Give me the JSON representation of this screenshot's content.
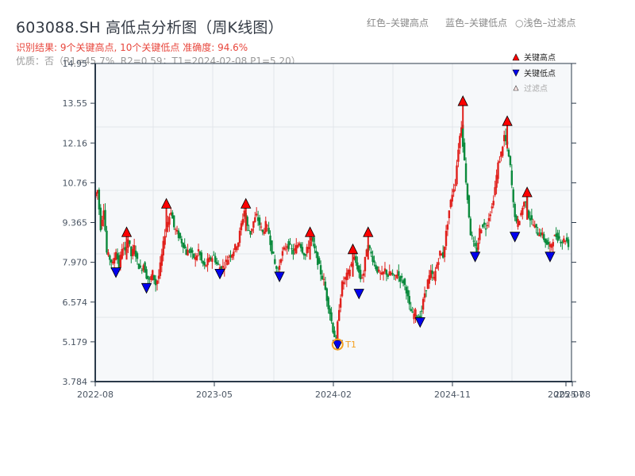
{
  "header": {
    "title": "603088.SH 高低点分析图（周K线图）",
    "result_line": "识别结果: 9个关键高点, 10个关键低点  准确度: 94.6%",
    "quality_line": "优质：否（R1=45.7%, R2=0.59；T1=2024-02-08 P1=5.20）"
  },
  "top_legend": {
    "red": "红色–关键高点",
    "blue": "蓝色–关键低点",
    "light": "○浅色–过滤点"
  },
  "colors": {
    "up": "#e0201c",
    "down": "#0a8a3c",
    "high_marker": "#ff0000",
    "low_marker": "#0000ee",
    "t1_ring": "#f5a020",
    "axis": "#2b3a4a",
    "grid": "#e2e6ea",
    "plot_bg": "#f6f8fa"
  },
  "chart_data": {
    "type": "candlestick",
    "title": "603088.SH 高低点分析图（周K线图）",
    "xlabel": "",
    "ylabel": "",
    "ylim": [
      3.784,
      14.95
    ],
    "y_ticks": [
      "14.95",
      "13.55",
      "12.16",
      "10.76",
      "9.365",
      "7.970",
      "6.574",
      "5.179",
      "3.784"
    ],
    "x_ticks": [
      "2022-08",
      "2023-05",
      "2024-02",
      "2024-11",
      "2025-07",
      "2025-08"
    ],
    "legend": [
      {
        "label": "关键高点",
        "marker": "triangle-up",
        "color": "#ff0000"
      },
      {
        "label": "关键低点",
        "marker": "triangle-down",
        "color": "#0000ee"
      },
      {
        "label": "过滤点",
        "marker": "triangle-up-outline",
        "color": "#ffcccc"
      }
    ],
    "grid": true,
    "annotation": {
      "label": "T1",
      "date": "2024-02-08",
      "price": 5.2
    },
    "path_points": [
      [
        0,
        10.3
      ],
      [
        2,
        10.5
      ],
      [
        4,
        9.2
      ],
      [
        6,
        9.9
      ],
      [
        8,
        8.3
      ],
      [
        10,
        8.1
      ],
      [
        12,
        7.9
      ],
      [
        14,
        8.4
      ],
      [
        16,
        7.8
      ],
      [
        18,
        8.5
      ],
      [
        20,
        8.3
      ],
      [
        22,
        8.8
      ],
      [
        24,
        8.2
      ],
      [
        26,
        8.5
      ],
      [
        28,
        8.0
      ],
      [
        30,
        7.7
      ],
      [
        32,
        7.9
      ],
      [
        34,
        7.5
      ],
      [
        36,
        7.3
      ],
      [
        38,
        7.6
      ],
      [
        40,
        7.2
      ],
      [
        42,
        7.5
      ],
      [
        44,
        8.2
      ],
      [
        46,
        9.0
      ],
      [
        48,
        9.4
      ],
      [
        50,
        9.8
      ],
      [
        52,
        9.2
      ],
      [
        54,
        9.0
      ],
      [
        56,
        8.8
      ],
      [
        58,
        8.6
      ],
      [
        60,
        8.3
      ],
      [
        62,
        8.4
      ],
      [
        64,
        8.2
      ],
      [
        66,
        8.1
      ],
      [
        68,
        8.4
      ],
      [
        70,
        8.0
      ],
      [
        72,
        7.8
      ],
      [
        74,
        8.0
      ],
      [
        76,
        8.1
      ],
      [
        78,
        8.2
      ],
      [
        80,
        7.9
      ],
      [
        82,
        7.8
      ],
      [
        84,
        7.8
      ],
      [
        86,
        8.0
      ],
      [
        88,
        8.2
      ],
      [
        90,
        8.3
      ],
      [
        92,
        8.5
      ],
      [
        94,
        8.7
      ],
      [
        96,
        9.3
      ],
      [
        98,
        9.8
      ],
      [
        100,
        9.2
      ],
      [
        102,
        9.0
      ],
      [
        104,
        9.4
      ],
      [
        106,
        9.6
      ],
      [
        108,
        9.3
      ],
      [
        110,
        9.0
      ],
      [
        112,
        9.3
      ],
      [
        114,
        9.0
      ],
      [
        116,
        8.4
      ],
      [
        118,
        7.9
      ],
      [
        120,
        7.6
      ],
      [
        122,
        8.2
      ],
      [
        124,
        8.4
      ],
      [
        126,
        8.6
      ],
      [
        128,
        8.5
      ],
      [
        130,
        8.3
      ],
      [
        132,
        8.5
      ],
      [
        134,
        8.7
      ],
      [
        136,
        8.4
      ],
      [
        138,
        8.2
      ],
      [
        140,
        8.6
      ],
      [
        142,
        8.8
      ],
      [
        144,
        8.4
      ],
      [
        146,
        8.0
      ],
      [
        148,
        7.6
      ],
      [
        150,
        7.3
      ],
      [
        152,
        6.7
      ],
      [
        154,
        6.2
      ],
      [
        156,
        5.6
      ],
      [
        158,
        5.2
      ],
      [
        160,
        6.4
      ],
      [
        162,
        7.2
      ],
      [
        164,
        7.4
      ],
      [
        166,
        7.6
      ],
      [
        168,
        7.9
      ],
      [
        170,
        8.1
      ],
      [
        172,
        7.8
      ],
      [
        174,
        7.4
      ],
      [
        176,
        7.6
      ],
      [
        178,
        8.5
      ],
      [
        180,
        8.4
      ],
      [
        182,
        8.1
      ],
      [
        184,
        7.8
      ],
      [
        186,
        7.6
      ],
      [
        188,
        7.5
      ],
      [
        190,
        7.7
      ],
      [
        192,
        7.5
      ],
      [
        194,
        7.6
      ],
      [
        196,
        7.4
      ],
      [
        198,
        7.6
      ],
      [
        200,
        7.4
      ],
      [
        202,
        7.3
      ],
      [
        204,
        7.0
      ],
      [
        206,
        6.4
      ],
      [
        208,
        6.1
      ],
      [
        210,
        6.2
      ],
      [
        212,
        6.0
      ],
      [
        214,
        6.3
      ],
      [
        216,
        6.9
      ],
      [
        218,
        7.3
      ],
      [
        220,
        7.6
      ],
      [
        222,
        7.4
      ],
      [
        224,
        7.9
      ],
      [
        226,
        8.3
      ],
      [
        228,
        8.2
      ],
      [
        230,
        9.0
      ],
      [
        232,
        9.8
      ],
      [
        234,
        10.4
      ],
      [
        236,
        10.8
      ],
      [
        238,
        12.0
      ],
      [
        240,
        12.8
      ],
      [
        242,
        11.5
      ],
      [
        244,
        10.2
      ],
      [
        246,
        9.0
      ],
      [
        248,
        8.6
      ],
      [
        250,
        8.3
      ],
      [
        252,
        9.1
      ],
      [
        254,
        9.3
      ],
      [
        256,
        9.2
      ],
      [
        258,
        9.6
      ],
      [
        260,
        9.9
      ],
      [
        262,
        10.6
      ],
      [
        264,
        11.4
      ],
      [
        266,
        11.8
      ],
      [
        268,
        12.4
      ],
      [
        270,
        12.0
      ],
      [
        272,
        11.3
      ],
      [
        274,
        10.0
      ],
      [
        276,
        9.3
      ],
      [
        278,
        9.5
      ],
      [
        280,
        9.9
      ],
      [
        282,
        10.2
      ],
      [
        284,
        9.6
      ],
      [
        286,
        9.4
      ],
      [
        288,
        9.2
      ],
      [
        290,
        9.0
      ],
      [
        292,
        9.0
      ],
      [
        294,
        8.8
      ],
      [
        296,
        8.6
      ],
      [
        298,
        8.5
      ],
      [
        300,
        8.8
      ],
      [
        302,
        8.9
      ],
      [
        304,
        8.8
      ],
      [
        306,
        8.7
      ],
      [
        308,
        8.8
      ],
      [
        310,
        8.6
      ]
    ],
    "key_highs": [
      {
        "x_week": 20,
        "price": 8.9
      },
      {
        "x_week": 46,
        "price": 9.9
      },
      {
        "x_week": 98,
        "price": 9.9
      },
      {
        "x_week": 140,
        "price": 8.9
      },
      {
        "x_week": 168,
        "price": 8.3
      },
      {
        "x_week": 178,
        "price": 8.9
      },
      {
        "x_week": 240,
        "price": 13.5
      },
      {
        "x_week": 269,
        "price": 12.8
      },
      {
        "x_week": 282,
        "price": 10.3
      }
    ],
    "key_lows": [
      {
        "x_week": 13,
        "price": 7.75
      },
      {
        "x_week": 33,
        "price": 7.2
      },
      {
        "x_week": 81,
        "price": 7.7
      },
      {
        "x_week": 120,
        "price": 7.6
      },
      {
        "x_week": 158,
        "price": 5.2
      },
      {
        "x_week": 172,
        "price": 7.0
      },
      {
        "x_week": 212,
        "price": 6.0
      },
      {
        "x_week": 248,
        "price": 8.3
      },
      {
        "x_week": 274,
        "price": 9.0
      },
      {
        "x_week": 297,
        "price": 8.3
      }
    ]
  }
}
